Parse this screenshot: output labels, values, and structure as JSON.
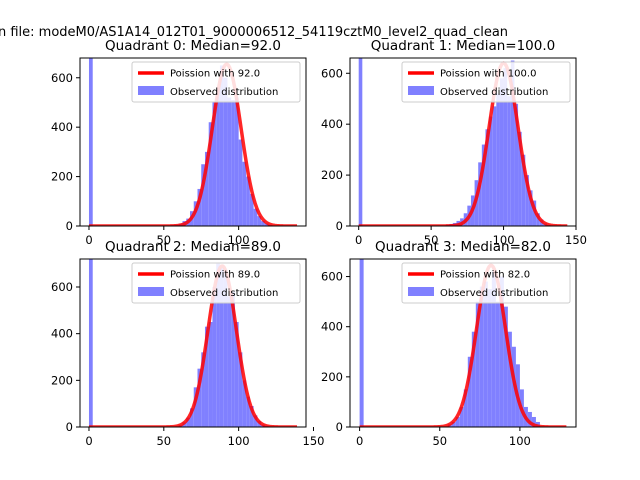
{
  "page": {
    "suptitle": "n file: modeM0/AS1A14_012T01_9000006512_54119cztM0_level2_quad_clean"
  },
  "colors": {
    "hist": "#8080ff",
    "fit": "#ff0000",
    "background": "#ffffff",
    "axes": "#000000"
  },
  "chart_data": [
    {
      "type": "bar",
      "title": "Quadrant 0: Median=92.0",
      "xlim": [
        -6,
        145
      ],
      "ylim": [
        0,
        680
      ],
      "xticks": [
        0,
        50,
        100
      ],
      "yticks": [
        0,
        200,
        400,
        600
      ],
      "legend_position": "upper right",
      "legend": [
        "Poission with 92.0",
        "Observed distribution"
      ],
      "poisson_mean": 92.0,
      "poisson_peak": 655,
      "hist": {
        "bin_width": 2.5,
        "bin_starts": [
          0,
          55,
          57.5,
          60,
          62.5,
          65,
          67.5,
          70,
          72.5,
          75,
          77.5,
          80,
          82.5,
          85,
          87.5,
          90,
          92.5,
          95,
          97.5,
          100,
          102.5,
          105,
          107.5,
          110,
          112.5,
          115,
          117.5,
          120
        ],
        "counts": [
          680,
          3,
          5,
          10,
          20,
          30,
          60,
          100,
          150,
          250,
          300,
          420,
          500,
          560,
          650,
          600,
          520,
          510,
          520,
          350,
          260,
          200,
          130,
          70,
          40,
          20,
          10,
          5
        ]
      }
    },
    {
      "type": "bar",
      "title": "Quadrant 1: Median=100.0",
      "xlim": [
        -6,
        150
      ],
      "ylim": [
        0,
        660
      ],
      "xticks": [
        0,
        50,
        100,
        150
      ],
      "yticks": [
        0,
        200,
        400,
        600
      ],
      "legend_position": "upper right",
      "legend": [
        "Poission with 100.0",
        "Observed distribution"
      ],
      "poisson_mean": 100.0,
      "poisson_peak": 640,
      "hist": {
        "bin_width": 2.5,
        "bin_starts": [
          0,
          57.5,
          60,
          62.5,
          65,
          67.5,
          70,
          72.5,
          75,
          77.5,
          80,
          82.5,
          85,
          87.5,
          90,
          92.5,
          95,
          97.5,
          100,
          102.5,
          105,
          107.5,
          110,
          112.5,
          115,
          117.5,
          120,
          122.5,
          125,
          127.5,
          130
        ],
        "counts": [
          660,
          2,
          5,
          8,
          12,
          20,
          30,
          50,
          80,
          120,
          180,
          250,
          320,
          380,
          430,
          470,
          520,
          580,
          620,
          510,
          650,
          480,
          370,
          280,
          200,
          140,
          100,
          50,
          25,
          10,
          4
        ]
      }
    },
    {
      "type": "bar",
      "title": "Quadrant 2: Median=89.0",
      "xlim": [
        -6,
        145
      ],
      "ylim": [
        0,
        720
      ],
      "xticks": [
        0,
        50,
        100,
        150
      ],
      "yticks": [
        0,
        200,
        400,
        600
      ],
      "legend_position": "upper right",
      "legend": [
        "Poission with 89.0",
        "Observed distribution"
      ],
      "poisson_mean": 89.0,
      "poisson_peak": 690,
      "hist": {
        "bin_width": 2.5,
        "bin_starts": [
          0,
          57.5,
          60,
          62.5,
          65,
          67.5,
          70,
          72.5,
          75,
          77.5,
          80,
          82.5,
          85,
          87.5,
          90,
          92.5,
          95,
          97.5,
          100,
          102.5,
          105,
          107.5,
          110,
          112.5,
          115,
          117.5
        ],
        "counts": [
          720,
          3,
          8,
          20,
          40,
          80,
          170,
          250,
          320,
          430,
          450,
          600,
          700,
          680,
          670,
          560,
          580,
          450,
          320,
          200,
          130,
          90,
          50,
          25,
          10,
          4
        ]
      }
    },
    {
      "type": "bar",
      "title": "Quadrant 3: Median=82.0",
      "xlim": [
        -6,
        135
      ],
      "ylim": [
        0,
        670
      ],
      "xticks": [
        0,
        50,
        100
      ],
      "yticks": [
        0,
        200,
        400,
        600
      ],
      "legend_position": "upper right",
      "legend": [
        "Poission with 82.0",
        "Observed distribution"
      ],
      "poisson_mean": 82.0,
      "poisson_peak": 645,
      "hist": {
        "bin_width": 2.5,
        "bin_starts": [
          0,
          55,
          57.5,
          60,
          62.5,
          65,
          67.5,
          70,
          72.5,
          75,
          77.5,
          80,
          82.5,
          85,
          87.5,
          90,
          92.5,
          95,
          97.5,
          100,
          102.5,
          105,
          107.5,
          110
        ],
        "counts": [
          670,
          10,
          20,
          40,
          80,
          150,
          280,
          380,
          500,
          560,
          580,
          550,
          620,
          500,
          600,
          480,
          380,
          320,
          250,
          150,
          80,
          60,
          40,
          20
        ]
      }
    }
  ]
}
